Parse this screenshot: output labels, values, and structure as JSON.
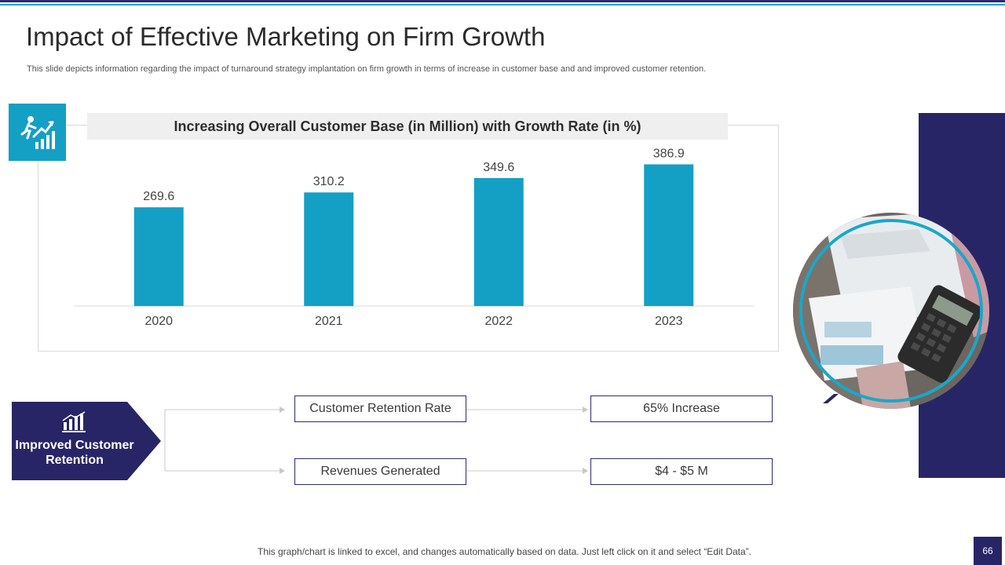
{
  "slide": {
    "title": "Impact of Effective Marketing on Firm Growth",
    "subtitle": "This slide depicts information regarding the impact of turnaround strategy implantation on firm growth in terms of increase in customer base and and improved customer retention.",
    "footer_note": "This graph/chart is linked to excel,  and changes automatically based on data. Just left click on it and select “Edit Data”.",
    "page_number": "66"
  },
  "colors": {
    "bar": "#149fc5",
    "navy": "#282567",
    "accent": "#1aa7c9"
  },
  "chart_data": {
    "type": "bar",
    "title": "Increasing Overall Customer Base (in Million) with Growth Rate (in %)",
    "categories": [
      "2020",
      "2021",
      "2022",
      "2023"
    ],
    "values": [
      269.6,
      310.2,
      349.6,
      386.9
    ],
    "value_labels": [
      "269.6",
      "310.2",
      "349.6",
      "386.9"
    ],
    "xlabel": "",
    "ylabel": "",
    "ylim": [
      0,
      450
    ],
    "grid": false,
    "legend": "none"
  },
  "retention": {
    "label": "Improved Customer Retention",
    "metrics": [
      {
        "name": "Customer Retention Rate",
        "value": "65% Increase"
      },
      {
        "name": "Revenues  Generated",
        "value": "$4 - $5 M"
      }
    ]
  }
}
